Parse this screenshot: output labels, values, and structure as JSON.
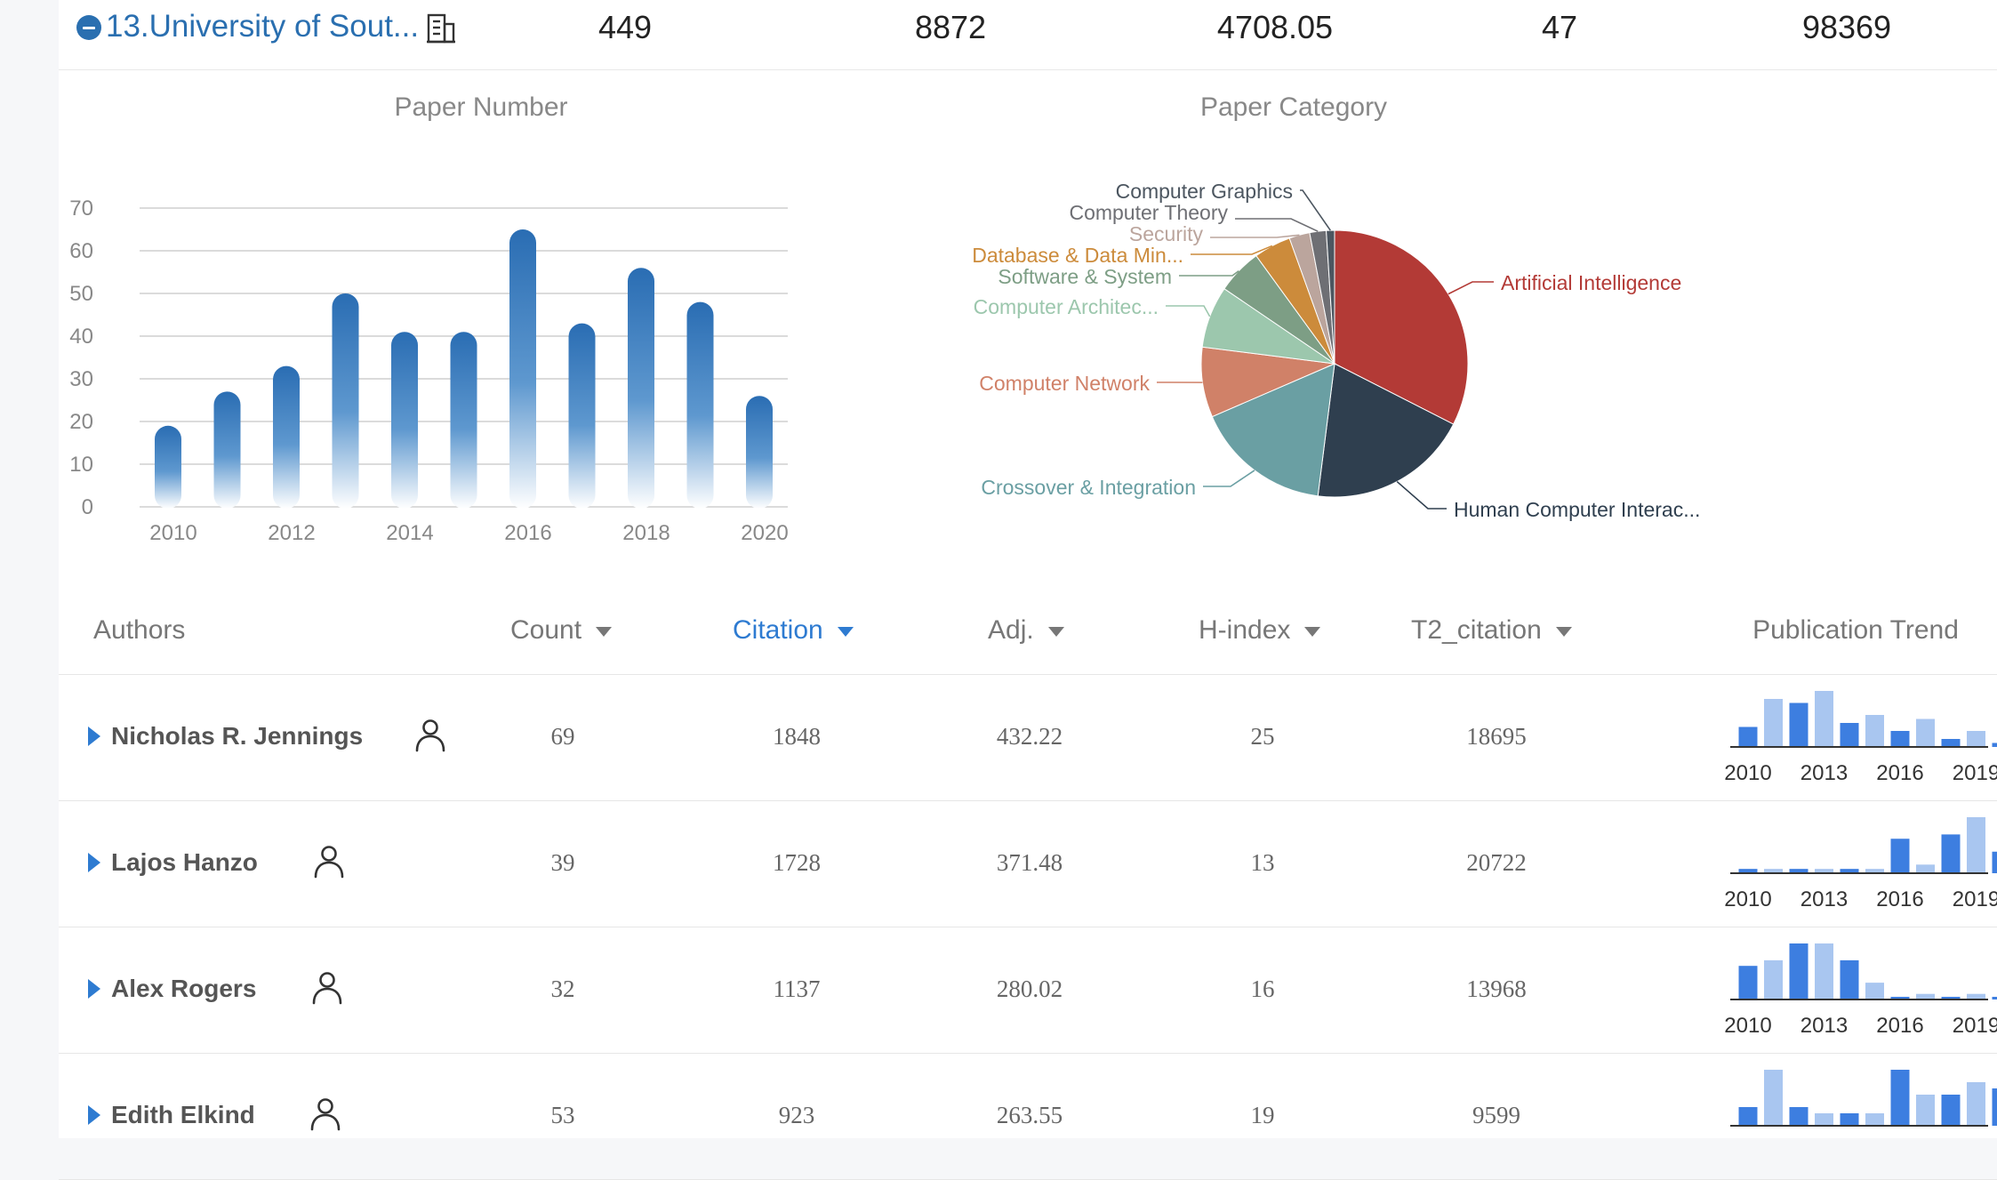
{
  "summary": {
    "rank_name": "13.University of Sout...",
    "stats": [
      "449",
      "8872",
      "4708.05",
      "47",
      "98369"
    ]
  },
  "colors": {
    "brand": "#2a6fb0",
    "accent": "#2e7bd1",
    "bar": "#2a6db3"
  },
  "chart_data": [
    {
      "type": "bar",
      "title": "Paper Number",
      "categories": [
        "2010",
        "2011",
        "2012",
        "2013",
        "2014",
        "2015",
        "2016",
        "2017",
        "2018",
        "2019",
        "2020"
      ],
      "x_tick_labels": [
        "2010",
        "2012",
        "2014",
        "2016",
        "2018",
        "2020"
      ],
      "values": [
        19,
        27,
        33,
        50,
        41,
        41,
        65,
        43,
        56,
        48,
        26
      ],
      "ylim": [
        0,
        70
      ],
      "y_ticks": [
        "0",
        "10",
        "20",
        "30",
        "40",
        "50",
        "60",
        "70"
      ],
      "grid": true
    },
    {
      "type": "pie",
      "title": "Paper Category",
      "slices": [
        {
          "label": "Artificial Intelligence",
          "value": 32.5,
          "color": "#b33a36"
        },
        {
          "label": "Human Computer Interac...",
          "value": 19.5,
          "color": "#2f3f4f"
        },
        {
          "label": "Crossover & Integration",
          "value": 16.5,
          "color": "#6a9fa3"
        },
        {
          "label": "Computer Network",
          "value": 8.5,
          "color": "#d08168"
        },
        {
          "label": "Computer Architec...",
          "value": 7.5,
          "color": "#9cc7ad"
        },
        {
          "label": "Software & System",
          "value": 5.5,
          "color": "#7d9e85"
        },
        {
          "label": "Database & Data Min...",
          "value": 4.5,
          "color": "#cc8b3b"
        },
        {
          "label": "Security",
          "value": 2.5,
          "color": "#bba59d"
        },
        {
          "label": "Computer Theory",
          "value": 2.0,
          "color": "#6e6f74"
        },
        {
          "label": "Computer Graphics",
          "value": 1.0,
          "color": "#4c5660"
        }
      ]
    }
  ],
  "table": {
    "headers": {
      "authors": "Authors",
      "count": "Count",
      "citation": "Citation",
      "adj": "Adj.",
      "hindex": "H-index",
      "t2": "T2_citation",
      "trend": "Publication Trend"
    },
    "sorted_by": "Citation",
    "rows": [
      {
        "name": "Nicholas R. Jennings",
        "count": "69",
        "citation": "1848",
        "adj": "432.22",
        "hindex": "25",
        "t2": "18695",
        "trend": [
          5,
          12,
          11,
          14,
          6,
          8,
          4,
          7,
          2,
          4,
          1
        ],
        "trend_labels": [
          "2010",
          "2013",
          "2016",
          "2019"
        ]
      },
      {
        "name": "Lajos Hanzo",
        "count": "39",
        "citation": "1728",
        "adj": "371.48",
        "hindex": "13",
        "t2": "20722",
        "trend": [
          1,
          1,
          1,
          1,
          1,
          1,
          8,
          2,
          9,
          13,
          5
        ],
        "trend_labels": [
          "2010",
          "2013",
          "2016",
          "2019"
        ]
      },
      {
        "name": "Alex Rogers",
        "count": "32",
        "citation": "1137",
        "adj": "280.02",
        "hindex": "16",
        "t2": "13968",
        "trend": [
          6,
          7,
          10,
          10,
          7,
          3,
          0,
          1,
          0,
          1,
          0
        ],
        "trend_labels": [
          "2010",
          "2013",
          "2016",
          "2019"
        ]
      },
      {
        "name": "Edith Elkind",
        "count": "53",
        "citation": "923",
        "adj": "263.55",
        "hindex": "19",
        "t2": "9599",
        "trend": [
          3,
          9,
          3,
          2,
          2,
          2,
          9,
          5,
          5,
          7,
          6
        ],
        "trend_labels": []
      }
    ]
  }
}
